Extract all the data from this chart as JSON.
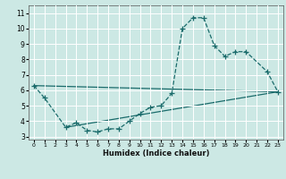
{
  "xlabel": "Humidex (Indice chaleur)",
  "xlim": [
    -0.5,
    23.5
  ],
  "ylim": [
    2.8,
    11.5
  ],
  "xticks": [
    0,
    1,
    2,
    3,
    4,
    5,
    6,
    7,
    8,
    9,
    10,
    11,
    12,
    13,
    14,
    15,
    16,
    17,
    18,
    19,
    20,
    21,
    22,
    23
  ],
  "yticks": [
    3,
    4,
    5,
    6,
    7,
    8,
    9,
    10,
    11
  ],
  "bg_color": "#cce8e4",
  "line_color": "#1a6b6b",
  "grid_color": "#ffffff",
  "main_curve": {
    "x": [
      0,
      1,
      3,
      4,
      5,
      6,
      7,
      8,
      9,
      10,
      11,
      12,
      13,
      14,
      15,
      16,
      17,
      18,
      19,
      20,
      22,
      23
    ],
    "y": [
      6.3,
      5.5,
      3.6,
      3.9,
      3.4,
      3.3,
      3.5,
      3.5,
      4.0,
      4.5,
      4.9,
      5.0,
      5.8,
      10.0,
      10.7,
      10.7,
      8.9,
      8.2,
      8.5,
      8.5,
      7.2,
      5.9
    ]
  },
  "straight_line1": {
    "x": [
      0,
      23
    ],
    "y": [
      6.3,
      5.9
    ]
  },
  "straight_line2": {
    "x": [
      3,
      23
    ],
    "y": [
      3.6,
      5.9
    ]
  }
}
